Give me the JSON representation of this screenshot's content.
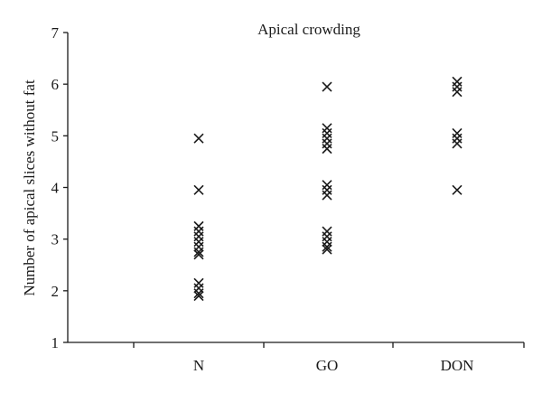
{
  "chart_data": {
    "type": "scatter",
    "title": "Apical crowding",
    "xlabel": "",
    "ylabel": "Number of apical slices without fat",
    "categories": [
      "N",
      "GO",
      "DON"
    ],
    "ylim": [
      1,
      7
    ],
    "yticks": [
      1,
      2,
      3,
      4,
      5,
      6,
      7
    ],
    "marker": "x",
    "grid": false,
    "legend": "none",
    "series": [
      {
        "category": "N",
        "values": [
          4.95,
          3.95,
          3.25,
          3.15,
          3.05,
          2.95,
          2.85,
          2.75,
          2.7,
          2.15,
          2.05,
          1.95,
          1.9
        ]
      },
      {
        "category": "GO",
        "values": [
          5.95,
          5.15,
          5.05,
          4.95,
          4.85,
          4.75,
          4.05,
          3.95,
          3.85,
          3.15,
          3.05,
          2.95,
          2.85,
          2.8
        ]
      },
      {
        "category": "DON",
        "values": [
          6.05,
          5.95,
          5.85,
          5.05,
          4.95,
          4.85,
          3.95
        ]
      }
    ]
  }
}
